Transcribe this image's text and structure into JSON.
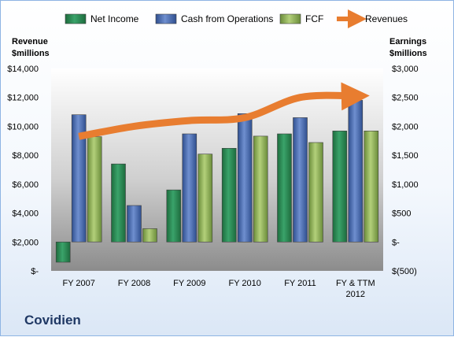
{
  "company": "Covidien",
  "chart_data": {
    "type": "bar",
    "categories": [
      "FY 2007",
      "FY 2008",
      "FY 2009",
      "FY 2010",
      "FY 2011",
      "FY & TTM 2012"
    ],
    "category_lines": [
      [
        "FY 2007"
      ],
      [
        "FY 2008"
      ],
      [
        "FY 2009"
      ],
      [
        "FY 2010"
      ],
      [
        "FY 2011"
      ],
      [
        "FY & TTM",
        "2012"
      ]
    ],
    "series": [
      {
        "name": "Net Income",
        "axis": "right",
        "color": "#2e8b57",
        "values": [
          -350,
          1350,
          900,
          1620,
          1870,
          1920
        ]
      },
      {
        "name": "Cash from Operations",
        "axis": "right",
        "color": "#4f6fb0",
        "values": [
          2200,
          630,
          1870,
          2220,
          2150,
          2450
        ]
      },
      {
        "name": "FCF",
        "axis": "right",
        "color": "#8fb35a",
        "values": [
          1820,
          230,
          1520,
          1830,
          1720,
          1920
        ]
      },
      {
        "name": "Revenues",
        "axis": "left",
        "type": "line",
        "color": "#e87d30",
        "values": [
          9300,
          10000,
          10400,
          10600,
          12000,
          12100
        ]
      }
    ],
    "left_axis": {
      "title": [
        "Revenue",
        "$millions"
      ],
      "ylim": [
        0,
        14000
      ],
      "ticks": [
        0,
        2000,
        4000,
        6000,
        8000,
        10000,
        12000,
        14000
      ],
      "tick_labels": [
        "$-",
        "$2,000",
        "$4,000",
        "$6,000",
        "$8,000",
        "$10,000",
        "$12,000",
        "$14,000"
      ]
    },
    "right_axis": {
      "title": [
        "Earnings",
        "$millions"
      ],
      "ylim": [
        -500,
        3000
      ],
      "ticks": [
        -500,
        0,
        500,
        1000,
        1500,
        2000,
        2500,
        3000
      ],
      "tick_labels": [
        "$(500)",
        "$-",
        "$500",
        "$1,000",
        "$1,500",
        "$2,000",
        "$2,500",
        "$3,000"
      ]
    },
    "legend": {
      "position": "top"
    },
    "grid": false
  }
}
